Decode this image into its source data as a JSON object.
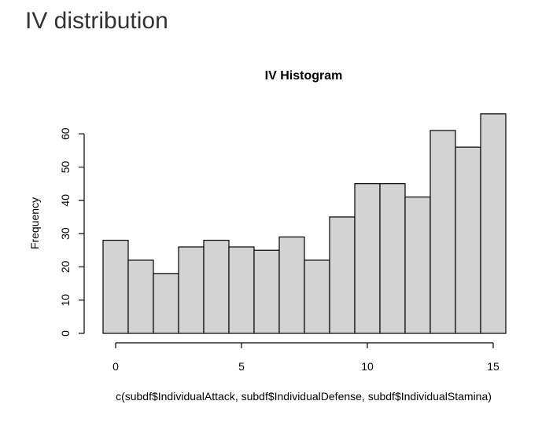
{
  "page": {
    "heading": "IV distribution"
  },
  "chart_data": {
    "type": "bar",
    "subtype": "histogram",
    "title": "IV Histogram",
    "xlabel": "c(subdf$IndividualAttack, subdf$IndividualDefense, subdf$IndividualStamina)",
    "ylabel": "Frequency",
    "bins": [
      {
        "start": -0.5,
        "end": 0.5,
        "count": 28
      },
      {
        "start": 0.5,
        "end": 1.5,
        "count": 22
      },
      {
        "start": 1.5,
        "end": 2.5,
        "count": 18
      },
      {
        "start": 2.5,
        "end": 3.5,
        "count": 26
      },
      {
        "start": 3.5,
        "end": 4.5,
        "count": 28
      },
      {
        "start": 4.5,
        "end": 5.5,
        "count": 26
      },
      {
        "start": 5.5,
        "end": 6.5,
        "count": 25
      },
      {
        "start": 6.5,
        "end": 7.5,
        "count": 29
      },
      {
        "start": 7.5,
        "end": 8.5,
        "count": 22
      },
      {
        "start": 8.5,
        "end": 9.5,
        "count": 35
      },
      {
        "start": 9.5,
        "end": 10.5,
        "count": 45
      },
      {
        "start": 10.5,
        "end": 11.5,
        "count": 45
      },
      {
        "start": 11.5,
        "end": 12.5,
        "count": 41
      },
      {
        "start": 12.5,
        "end": 13.5,
        "count": 61
      },
      {
        "start": 13.5,
        "end": 14.5,
        "count": 56
      },
      {
        "start": 14.5,
        "end": 15.5,
        "count": 66
      }
    ],
    "x_ticks": [
      0,
      5,
      10,
      15
    ],
    "y_ticks": [
      0,
      10,
      20,
      30,
      40,
      50,
      60
    ],
    "xlim": [
      -0.5,
      15.5
    ],
    "ylim": [
      0,
      66
    ],
    "bar_fill": "#d3d3d3",
    "bar_stroke": "#000000",
    "grid": false,
    "legend": "none"
  }
}
